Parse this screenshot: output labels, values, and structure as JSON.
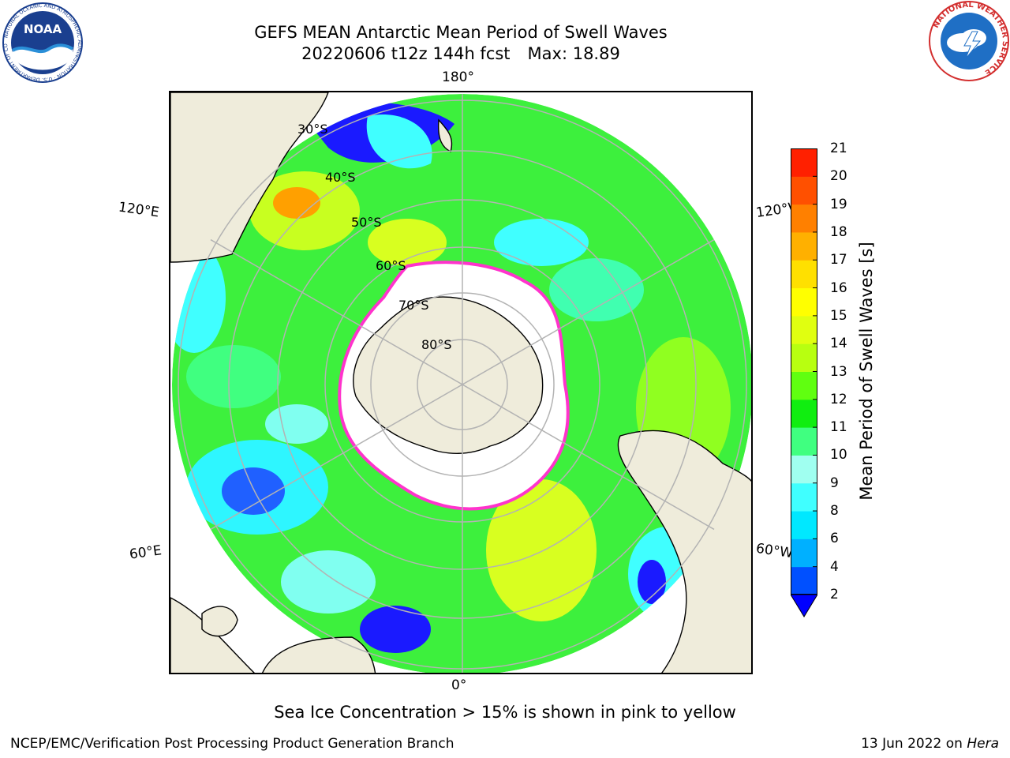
{
  "header": {
    "title_line1": "GEFS MEAN Antarctic Mean Period of Swell Waves",
    "run_label": "20220606 t12z 144h fcst",
    "max_label": "Max: 18.89"
  },
  "logos": {
    "noaa": {
      "text": "NOAA",
      "ring_text": "NATIONAL OCEANIC AND ATMOSPHERIC ADMINISTRATION · U.S. DEPARTMENT OF COMMERCE ·"
    },
    "nws": {
      "ring_text": "NATIONAL WEATHER SERVICE"
    }
  },
  "map": {
    "projection": "south-polar-stereographic",
    "longitude_labels": [
      "180°",
      "120°E",
      "120°W",
      "60°E",
      "60°W",
      "0°"
    ],
    "latitude_labels": [
      "30°S",
      "40°S",
      "50°S",
      "60°S",
      "70°S",
      "80°S"
    ],
    "colors": {
      "land": "#efecdb",
      "ice": "#ffffff",
      "ice_edge": "#ff33cc",
      "grid": "#b3b3b3"
    }
  },
  "colorbar": {
    "label": "Mean Period of Swell Waves [s]",
    "ticks": [
      "2",
      "4",
      "6",
      "8",
      "9",
      "10",
      "11",
      "12",
      "13",
      "14",
      "15",
      "16",
      "17",
      "18",
      "19",
      "20",
      "21"
    ],
    "colors": [
      "#0050ff",
      "#00b0ff",
      "#00e8ff",
      "#40ffff",
      "#a0fff0",
      "#40ff80",
      "#10ee10",
      "#60ff10",
      "#b8ff10",
      "#e0ff10",
      "#ffff00",
      "#ffe000",
      "#ffb000",
      "#ff8000",
      "#ff5000",
      "#ff2000"
    ],
    "extend_color": "#0000ff"
  },
  "footer": {
    "note": "Sea Ice Concentration > 15% is shown in pink to yellow",
    "credit": "NCEP/EMC/Verification Post Processing Product Generation Branch",
    "date_prefix": "13 Jun 2022 on",
    "machine": "Hera"
  }
}
